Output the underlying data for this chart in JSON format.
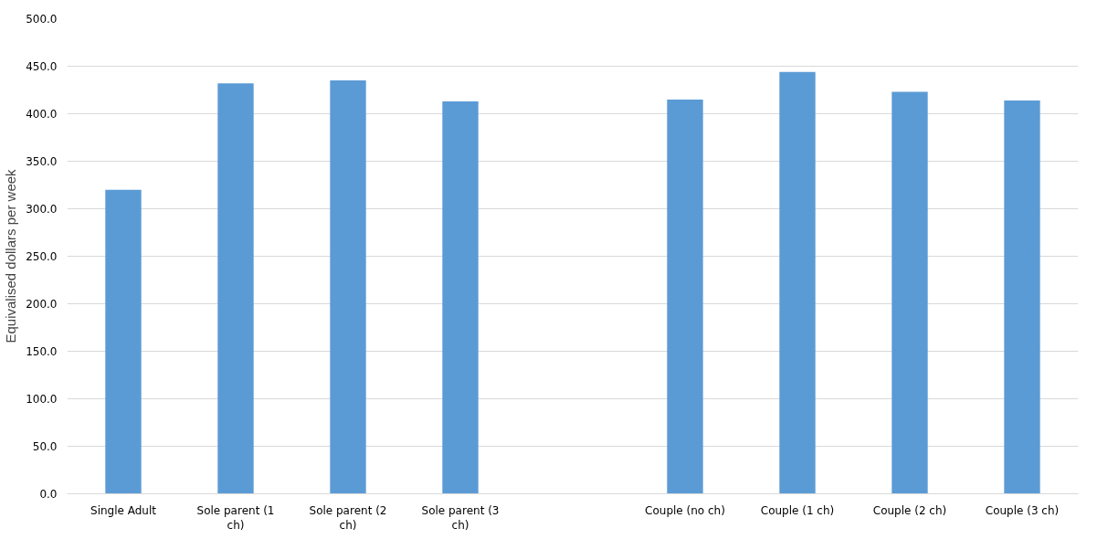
{
  "chart_data": {
    "type": "bar",
    "ylabel": "Equivalised dollars per week",
    "categories": [
      "Single Adult",
      "Sole parent (1 ch)",
      "Sole parent (2 ch)",
      "Sole parent (3 ch)",
      null,
      "Couple (no ch)",
      "Couple (1 ch)",
      "Couple (2 ch)",
      "Couple (3 ch)"
    ],
    "values": [
      320,
      432,
      435,
      413,
      null,
      415,
      444,
      423,
      414
    ],
    "color": "#5b9bd5",
    "ylim": [
      0,
      500
    ],
    "yticks": [
      {
        "value": 0,
        "label": "0.0"
      },
      {
        "value": 50,
        "label": "50.0"
      },
      {
        "value": 100,
        "label": "100.0"
      },
      {
        "value": 150,
        "label": "150.0"
      },
      {
        "value": 200,
        "label": "200.0"
      },
      {
        "value": 250,
        "label": "250.0"
      },
      {
        "value": 300,
        "label": "300.0"
      },
      {
        "value": 350,
        "label": "350.0"
      },
      {
        "value": 400,
        "label": "400.0"
      },
      {
        "value": 450,
        "label": "450.0"
      },
      {
        "value": 500,
        "label": "500.0"
      }
    ],
    "grid": "y"
  }
}
